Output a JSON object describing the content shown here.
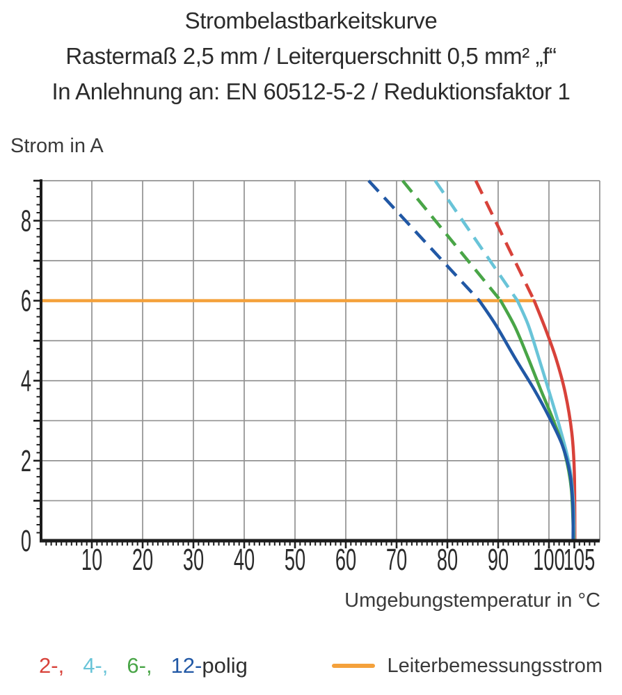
{
  "title": {
    "line1": "Strombelastbarkeitskurve",
    "line2": "Rastermaß 2,5 mm / Leiterquerschnitt 0,5 mm² „f“",
    "line3": "In Anlehnung an: EN 60512-5-2 / Reduktionsfaktor 1"
  },
  "chart_data": {
    "type": "line",
    "title": "Strombelastbarkeitskurve",
    "xlabel": "Umgebungstemperatur in °C",
    "ylabel": "Strom in A",
    "xlim": [
      0,
      110
    ],
    "ylim": [
      0,
      9
    ],
    "grid": true,
    "x_gridline_step": 10,
    "y_gridline_step": 1,
    "x_minor_tick_step": 1,
    "y_minor_tick_step": 0.2,
    "x_tick_labels": [
      10,
      20,
      30,
      40,
      50,
      60,
      70,
      80,
      90,
      100,
      105
    ],
    "y_tick_labels": [
      0,
      2,
      4,
      6,
      8
    ],
    "reference_line": {
      "label": "Leiterbemessungsstrom",
      "y": 6,
      "x_start": 0,
      "x_end": 97.1,
      "color": "#F4A13B"
    },
    "series": [
      {
        "name": "2-polig",
        "color": "#D8423A",
        "line_style": "dashed above reference line, solid below",
        "dashed_points": [
          [
            85.6,
            9
          ],
          [
            97.1,
            6
          ]
        ],
        "solid_points": [
          [
            97.1,
            6
          ],
          [
            99.3,
            5.3
          ],
          [
            101.4,
            4.55
          ],
          [
            103.2,
            3.7
          ],
          [
            104.5,
            2.7
          ],
          [
            105.0,
            1.7
          ],
          [
            105.1,
            0
          ]
        ]
      },
      {
        "name": "4-polig",
        "color": "#69C4D8",
        "line_style": "dashed above reference line, solid below",
        "dashed_points": [
          [
            77.6,
            9
          ],
          [
            93.8,
            6
          ]
        ],
        "solid_points": [
          [
            93.8,
            6
          ],
          [
            95.9,
            5.4
          ],
          [
            97.8,
            4.65
          ],
          [
            100.1,
            3.7
          ],
          [
            102.2,
            2.8
          ],
          [
            104.0,
            1.9
          ],
          [
            104.8,
            1.0
          ],
          [
            104.95,
            0
          ]
        ]
      },
      {
        "name": "6-polig",
        "color": "#49A547",
        "line_style": "dashed above reference line, solid below",
        "dashed_points": [
          [
            71.2,
            9
          ],
          [
            90.5,
            6
          ]
        ],
        "solid_points": [
          [
            90.5,
            6
          ],
          [
            93.3,
            5.35
          ],
          [
            95.8,
            4.6
          ],
          [
            98.3,
            3.8
          ],
          [
            100.9,
            3.0
          ],
          [
            103.1,
            2.2
          ],
          [
            104.4,
            1.3
          ],
          [
            104.85,
            0
          ]
        ]
      },
      {
        "name": "12-polig",
        "color": "#2158A5",
        "line_style": "dashed above reference line, solid below",
        "dashed_points": [
          [
            64.5,
            9
          ],
          [
            86.3,
            6
          ]
        ],
        "solid_points": [
          [
            86.3,
            6
          ],
          [
            89.5,
            5.4
          ],
          [
            93.4,
            4.55
          ],
          [
            97.0,
            3.8
          ],
          [
            100.0,
            3.1
          ],
          [
            102.6,
            2.4
          ],
          [
            104.1,
            1.7
          ],
          [
            104.7,
            0.9
          ],
          [
            104.75,
            0
          ]
        ]
      }
    ],
    "legend_poles": [
      {
        "label": "2-,",
        "color": "#D8423A"
      },
      {
        "label": "4-,",
        "color": "#69C4D8"
      },
      {
        "label": "6-,",
        "color": "#49A547"
      },
      {
        "label": "12-",
        "color": "#2158A5"
      },
      {
        "label": "polig",
        "color": "#2F2F2F"
      }
    ],
    "legend_position": "bottom"
  },
  "colors": {
    "grid": "#929292",
    "axis": "#1c1c1c",
    "tick_label": "#2a2a2a"
  }
}
